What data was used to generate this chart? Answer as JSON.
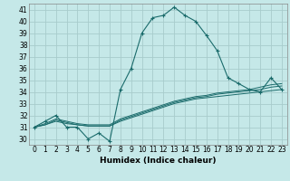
{
  "xlabel": "Humidex (Indice chaleur)",
  "ylabel": "",
  "bg_color": "#c5e8e8",
  "grid_color": "#a8cccc",
  "line_color": "#1a6b6b",
  "xlim": [
    -0.5,
    23.5
  ],
  "ylim": [
    29.5,
    41.5
  ],
  "yticks": [
    30,
    31,
    32,
    33,
    34,
    35,
    36,
    37,
    38,
    39,
    40,
    41
  ],
  "xticks": [
    0,
    1,
    2,
    3,
    4,
    5,
    6,
    7,
    8,
    9,
    10,
    11,
    12,
    13,
    14,
    15,
    16,
    17,
    18,
    19,
    20,
    21,
    22,
    23
  ],
  "x": [
    0,
    1,
    2,
    3,
    4,
    5,
    6,
    7,
    8,
    9,
    10,
    11,
    12,
    13,
    14,
    15,
    16,
    17,
    18,
    19,
    20,
    21,
    22,
    23
  ],
  "y_main": [
    31.0,
    31.5,
    32.0,
    31.0,
    31.0,
    30.0,
    30.5,
    29.8,
    34.2,
    36.0,
    39.0,
    40.3,
    40.5,
    41.2,
    40.5,
    40.0,
    38.8,
    37.5,
    35.2,
    34.7,
    34.2,
    34.0,
    35.2,
    34.2
  ],
  "y_line2": [
    31.0,
    31.2,
    31.5,
    31.3,
    31.2,
    31.1,
    31.1,
    31.1,
    31.5,
    31.8,
    32.1,
    32.4,
    32.7,
    33.0,
    33.2,
    33.4,
    33.5,
    33.6,
    33.7,
    33.8,
    33.9,
    34.0,
    34.1,
    34.2
  ],
  "y_line3": [
    31.0,
    31.2,
    31.6,
    31.4,
    31.2,
    31.1,
    31.1,
    31.1,
    31.6,
    31.9,
    32.2,
    32.5,
    32.8,
    33.1,
    33.3,
    33.5,
    33.6,
    33.8,
    33.9,
    34.0,
    34.1,
    34.2,
    34.4,
    34.5
  ],
  "y_line4": [
    31.0,
    31.3,
    31.7,
    31.5,
    31.3,
    31.2,
    31.2,
    31.2,
    31.7,
    32.0,
    32.3,
    32.6,
    32.9,
    33.2,
    33.4,
    33.6,
    33.7,
    33.9,
    34.0,
    34.1,
    34.2,
    34.4,
    34.6,
    34.7
  ]
}
